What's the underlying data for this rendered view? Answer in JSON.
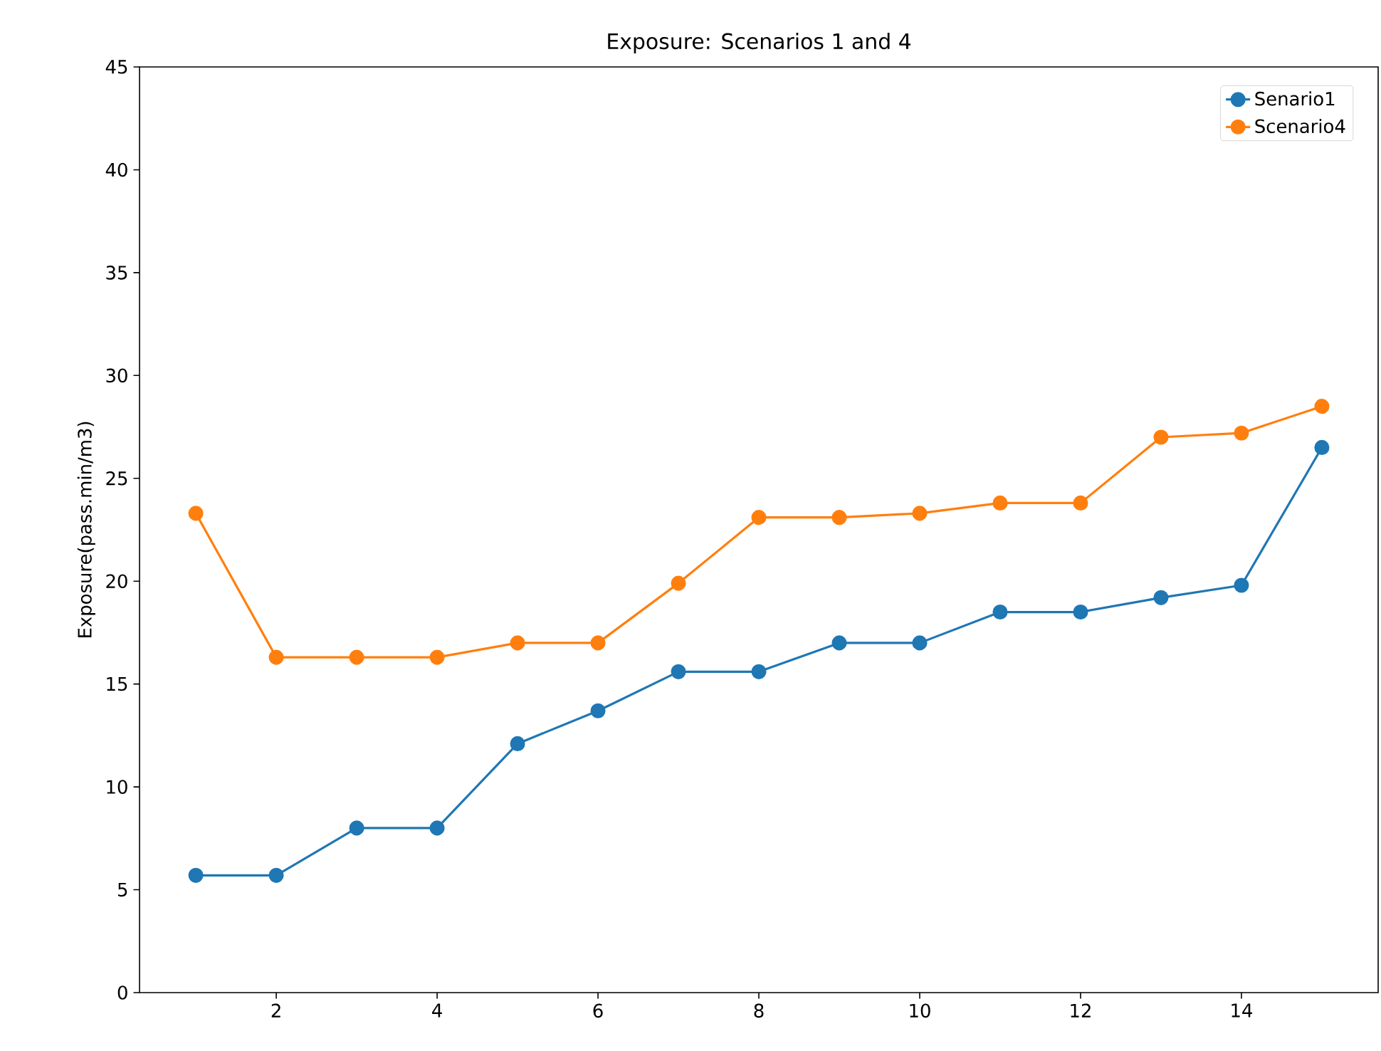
{
  "chart_data": {
    "type": "line",
    "title": "Exposure: Scenarios 1 and 4",
    "ylabel": "Exposure(pass.min/m3)",
    "x": [
      1,
      2,
      3,
      4,
      5,
      6,
      7,
      8,
      9,
      10,
      11,
      12,
      13,
      14,
      15
    ],
    "series": [
      {
        "name": "Senario1",
        "color": "#1f77b4",
        "values": [
          5.7,
          5.7,
          8.0,
          8.0,
          12.1,
          13.7,
          15.6,
          15.6,
          17.0,
          17.0,
          18.5,
          18.5,
          19.2,
          19.8,
          26.5
        ]
      },
      {
        "name": "Scenario4",
        "color": "#ff7f0e",
        "values": [
          23.3,
          16.3,
          16.3,
          16.3,
          17.0,
          17.0,
          19.9,
          23.1,
          23.1,
          23.3,
          23.8,
          23.8,
          27.0,
          27.2,
          28.5
        ]
      }
    ],
    "xlim": [
      0.3,
      15.7
    ],
    "ylim": [
      0,
      45
    ],
    "xticks": [
      2,
      4,
      6,
      8,
      10,
      12,
      14
    ],
    "yticks": [
      0,
      5,
      10,
      15,
      20,
      25,
      30,
      35,
      40,
      45
    ],
    "legend": "top right",
    "marker": "circle",
    "grid": false
  }
}
